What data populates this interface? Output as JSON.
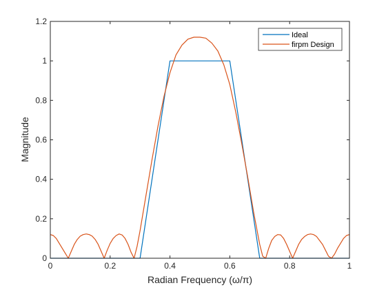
{
  "chart_data": {
    "type": "line",
    "title": "",
    "xlabel": "Radian  Frequency  (ω/π)",
    "ylabel": "Magnitude",
    "xlim": [
      0,
      1
    ],
    "ylim": [
      0,
      1.2
    ],
    "xticks": [
      0,
      0.2,
      0.4,
      0.6,
      0.8,
      1
    ],
    "xtick_labels": [
      "0",
      "0.2",
      "0.4",
      "0.6",
      "0.8",
      "1"
    ],
    "yticks": [
      0,
      0.2,
      0.4,
      0.6,
      0.8,
      1,
      1.2
    ],
    "ytick_labels": [
      "0",
      "0.2",
      "0.4",
      "0.6",
      "0.8",
      "1",
      "1.2"
    ],
    "grid": false,
    "legend_position": "top-right",
    "series": [
      {
        "name": "Ideal",
        "color": "#0072BD",
        "x": [
          0,
          0.3,
          0.4,
          0.6,
          0.7,
          1
        ],
        "y": [
          0,
          0,
          1,
          1,
          0,
          0
        ]
      },
      {
        "name": "firpm Design",
        "color": "#D95319",
        "x": [
          0,
          0.01,
          0.02,
          0.03,
          0.04,
          0.05,
          0.06,
          0.07,
          0.08,
          0.09,
          0.1,
          0.11,
          0.12,
          0.13,
          0.14,
          0.15,
          0.16,
          0.17,
          0.18,
          0.19,
          0.2,
          0.21,
          0.22,
          0.23,
          0.24,
          0.25,
          0.26,
          0.27,
          0.28,
          0.29,
          0.3,
          0.32,
          0.34,
          0.36,
          0.38,
          0.4,
          0.42,
          0.44,
          0.46,
          0.48,
          0.5,
          0.52,
          0.54,
          0.56,
          0.58,
          0.6,
          0.62,
          0.64,
          0.66,
          0.68,
          0.7,
          0.71,
          0.72,
          0.73,
          0.74,
          0.75,
          0.76,
          0.77,
          0.78,
          0.79,
          0.8,
          0.81,
          0.82,
          0.83,
          0.84,
          0.85,
          0.86,
          0.87,
          0.88,
          0.89,
          0.9,
          0.91,
          0.92,
          0.93,
          0.94,
          0.95,
          0.96,
          0.97,
          0.98,
          0.99,
          1
        ],
        "y": [
          0.12,
          0.115,
          0.1,
          0.075,
          0.05,
          0.025,
          0.0,
          0.035,
          0.07,
          0.095,
          0.112,
          0.12,
          0.123,
          0.12,
          0.112,
          0.095,
          0.07,
          0.035,
          0.0,
          0.04,
          0.075,
          0.1,
          0.115,
          0.123,
          0.118,
          0.1,
          0.07,
          0.03,
          0.0,
          0.06,
          0.14,
          0.32,
          0.5,
          0.67,
          0.82,
          0.94,
          1.03,
          1.08,
          1.11,
          1.12,
          1.12,
          1.115,
          1.09,
          1.05,
          0.98,
          0.88,
          0.74,
          0.58,
          0.41,
          0.23,
          0.07,
          0.01,
          0.0,
          0.05,
          0.09,
          0.11,
          0.12,
          0.118,
          0.1,
          0.07,
          0.035,
          0.0,
          0.035,
          0.07,
          0.095,
          0.11,
          0.12,
          0.123,
          0.12,
          0.11,
          0.09,
          0.07,
          0.04,
          0.01,
          0.0,
          0.02,
          0.05,
          0.075,
          0.1,
          0.115,
          0.12
        ]
      }
    ]
  }
}
